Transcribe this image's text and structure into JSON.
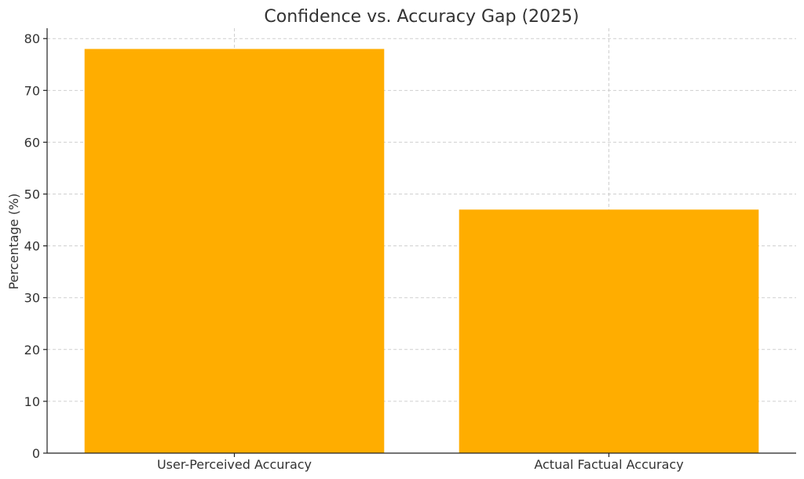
{
  "chart_data": {
    "type": "bar",
    "title": "Confidence vs. Accuracy Gap (2025)",
    "xlabel": "",
    "ylabel": "Percentage (%)",
    "categories": [
      "User-Perceived Accuracy",
      "Actual Factual Accuracy"
    ],
    "values": [
      78,
      47
    ],
    "ylim": [
      0,
      82
    ],
    "yticks": [
      0,
      10,
      20,
      30,
      40,
      50,
      60,
      70,
      80
    ],
    "grid": true,
    "bar_color": "#FFAD00"
  }
}
